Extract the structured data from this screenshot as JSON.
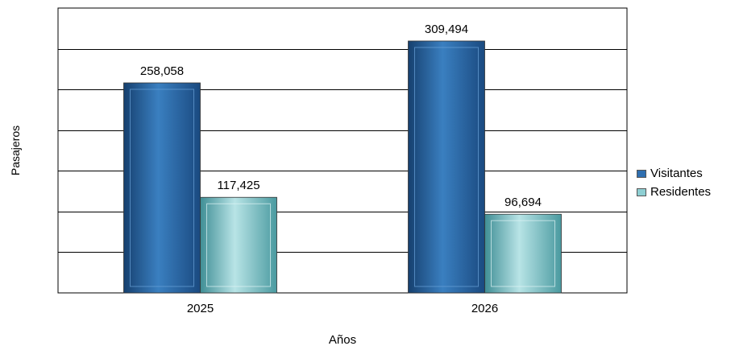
{
  "chart_data": {
    "type": "bar",
    "title": "",
    "xlabel": "Años",
    "ylabel": "Pasajeros",
    "categories": [
      "2025",
      "2026"
    ],
    "series": [
      {
        "name": "Visitantes",
        "values": [
          258058,
          309494
        ],
        "labels": [
          "258,058",
          "309,494"
        ],
        "color": "#2f6fb0"
      },
      {
        "name": "Residentes",
        "values": [
          117425,
          96694
        ],
        "labels": [
          "117,425",
          "96,694"
        ],
        "color": "#8ecfd3"
      }
    ],
    "ylim": [
      0,
      350000
    ],
    "y_step": 50000,
    "y_ticks_shown": false,
    "grid": true,
    "legend": "right"
  }
}
